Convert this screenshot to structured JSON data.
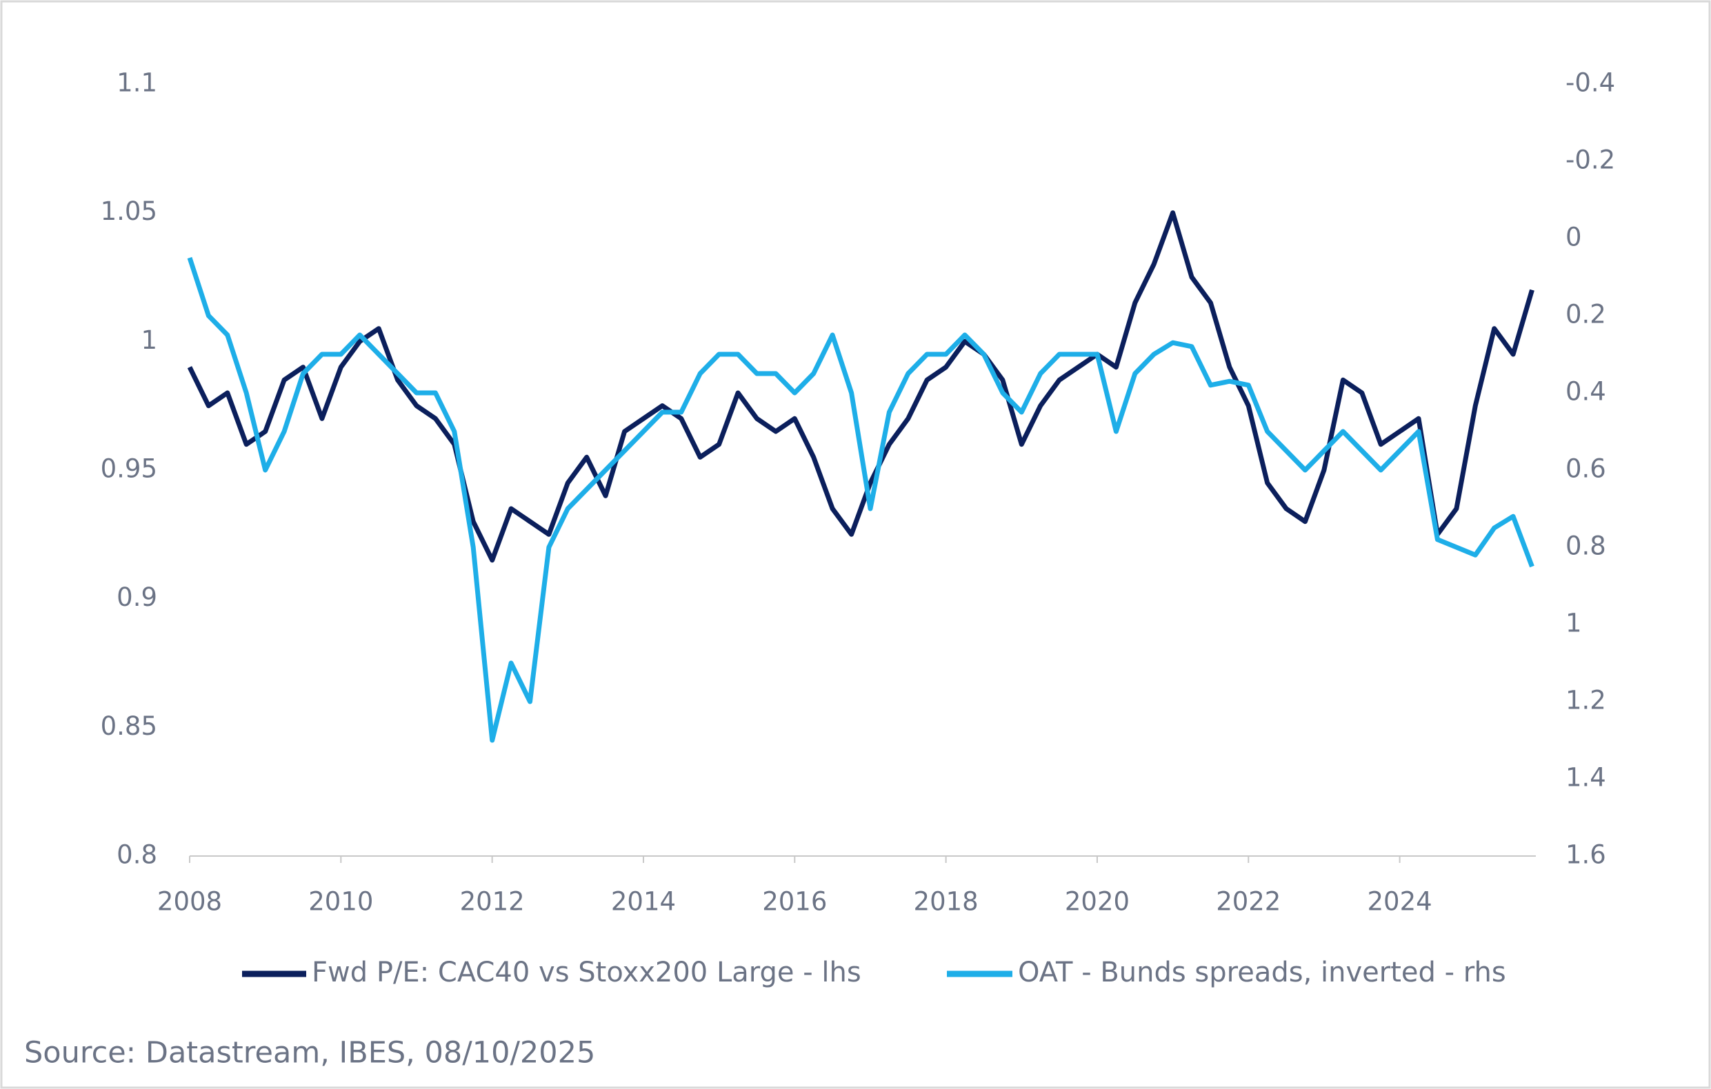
{
  "chart_data": {
    "type": "line",
    "x": [
      2008.0,
      2008.25,
      2008.5,
      2008.75,
      2009.0,
      2009.25,
      2009.5,
      2009.75,
      2010.0,
      2010.25,
      2010.5,
      2010.75,
      2011.0,
      2011.25,
      2011.5,
      2011.75,
      2012.0,
      2012.25,
      2012.5,
      2012.75,
      2013.0,
      2013.25,
      2013.5,
      2013.75,
      2014.0,
      2014.25,
      2014.5,
      2014.75,
      2015.0,
      2015.25,
      2015.5,
      2015.75,
      2016.0,
      2016.25,
      2016.5,
      2016.75,
      2017.0,
      2017.25,
      2017.5,
      2017.75,
      2018.0,
      2018.25,
      2018.5,
      2018.75,
      2019.0,
      2019.25,
      2019.5,
      2019.75,
      2020.0,
      2020.25,
      2020.5,
      2020.75,
      2021.0,
      2021.25,
      2021.5,
      2021.75,
      2022.0,
      2022.25,
      2022.5,
      2022.75,
      2023.0,
      2023.25,
      2023.5,
      2023.75,
      2024.0,
      2024.25,
      2024.5,
      2024.75,
      2025.0,
      2025.25,
      2025.5,
      2025.75
    ],
    "series": [
      {
        "name": "Fwd P/E: CAC40 vs Stoxx200 Large - lhs",
        "color": "#0b1f5c",
        "axis": "y",
        "values": [
          0.99,
          0.975,
          0.98,
          0.96,
          0.965,
          0.985,
          0.99,
          0.97,
          0.99,
          1.0,
          1.005,
          0.985,
          0.975,
          0.97,
          0.96,
          0.93,
          0.915,
          0.935,
          0.93,
          0.925,
          0.945,
          0.955,
          0.94,
          0.965,
          0.97,
          0.975,
          0.97,
          0.955,
          0.96,
          0.98,
          0.97,
          0.965,
          0.97,
          0.955,
          0.935,
          0.925,
          0.945,
          0.96,
          0.97,
          0.985,
          0.99,
          1.0,
          0.995,
          0.985,
          0.96,
          0.975,
          0.985,
          0.99,
          0.995,
          0.99,
          1.015,
          1.03,
          1.05,
          1.025,
          1.015,
          0.99,
          0.975,
          0.945,
          0.935,
          0.93,
          0.95,
          0.985,
          0.98,
          0.96,
          0.965,
          0.97,
          0.925,
          0.935,
          0.975,
          1.005,
          0.995,
          1.02
        ]
      },
      {
        "name": "OAT - Bunds spreads, inverted - rhs",
        "color": "#1eaee8",
        "axis": "y2",
        "values": [
          0.05,
          0.2,
          0.25,
          0.4,
          0.6,
          0.5,
          0.35,
          0.3,
          0.3,
          0.25,
          0.3,
          0.35,
          0.4,
          0.4,
          0.5,
          0.8,
          1.3,
          1.1,
          1.2,
          0.8,
          0.7,
          0.65,
          0.6,
          0.55,
          0.5,
          0.45,
          0.45,
          0.35,
          0.3,
          0.3,
          0.35,
          0.35,
          0.4,
          0.35,
          0.25,
          0.4,
          0.7,
          0.45,
          0.35,
          0.3,
          0.3,
          0.25,
          0.3,
          0.4,
          0.45,
          0.35,
          0.3,
          0.3,
          0.3,
          0.5,
          0.35,
          0.3,
          0.27,
          0.28,
          0.38,
          0.37,
          0.38,
          0.5,
          0.55,
          0.6,
          0.55,
          0.5,
          0.55,
          0.6,
          0.55,
          0.5,
          0.78,
          0.8,
          0.82,
          0.75,
          0.72,
          0.85
        ]
      }
    ],
    "xlim": [
      2008,
      2025.8
    ],
    "xticks": [
      2008,
      2010,
      2012,
      2014,
      2016,
      2018,
      2020,
      2022,
      2024
    ],
    "ylim": [
      0.8,
      1.1
    ],
    "yticks": [
      0.8,
      0.85,
      0.9,
      0.95,
      1,
      1.05,
      1.1
    ],
    "y2lim": [
      1.6,
      -0.4
    ],
    "y2ticks": [
      -0.4,
      -0.2,
      0,
      0.2,
      0.4,
      0.6,
      0.8,
      1,
      1.2,
      1.4,
      1.6
    ],
    "grid": false,
    "legend": "bottom",
    "source": "Source: Datastream, IBES, 08/10/2025"
  }
}
